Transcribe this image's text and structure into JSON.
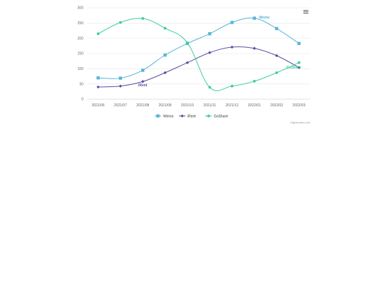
{
  "menu": {
    "icon": "hamburger-menu-icon"
  },
  "credit": "Highcharts.com",
  "chart_data": {
    "type": "line",
    "title": "",
    "xlabel": "",
    "ylabel": "",
    "categories": [
      "2021/06",
      "2021/07",
      "2021/08",
      "2021/09",
      "2021/10",
      "2021/11",
      "2021/12",
      "2022/01",
      "2022/02",
      "2022/03"
    ],
    "yticks": [
      0,
      50,
      100,
      150,
      200,
      250,
      300
    ],
    "ylim": [
      0,
      300
    ],
    "grid": true,
    "legend": "bottom-center",
    "series": [
      {
        "name": "Wemo",
        "color": "#58b4da",
        "marker": "square",
        "values": [
          70,
          69,
          95,
          145,
          183,
          215,
          252,
          266,
          232,
          183
        ]
      },
      {
        "name": "iRent",
        "color": "#5a4fa3",
        "marker": "diamond",
        "values": [
          40,
          43,
          58,
          87,
          120,
          153,
          171,
          167,
          143,
          104
        ]
      },
      {
        "name": "GoShare",
        "color": "#3fce98",
        "marker": "circle",
        "values": [
          215,
          252,
          265,
          233,
          185,
          39,
          43,
          59,
          87,
          120
        ]
      }
    ]
  }
}
